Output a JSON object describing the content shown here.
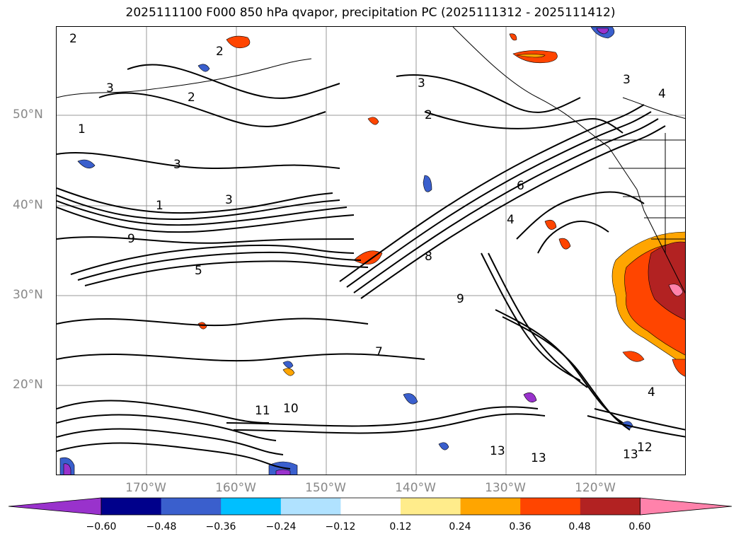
{
  "title": "2025111100 F000 850 hPa qvapor, precipitation PC (2025111312 - 2025111412)",
  "lat_labels": [
    "50°N",
    "40°N",
    "30°N",
    "20°N"
  ],
  "lon_labels": [
    "170°W",
    "160°W",
    "150°W",
    "140°W",
    "130°W",
    "120°W"
  ],
  "contour_labels": [
    "2",
    "3",
    "1",
    "9",
    "5",
    "6",
    "8",
    "10",
    "11",
    "12",
    "13",
    "4",
    "7"
  ],
  "colorbar": {
    "extend": "both",
    "colors": [
      "#9932cc",
      "#00008b",
      "#3a5fcd",
      "#00bfff",
      "#b0e2ff",
      "#ffffff",
      "#ffec8b",
      "#ffa500",
      "#ff4500",
      "#b22222",
      "#ff82ab"
    ],
    "tick_labels": [
      "−0.60",
      "−0.48",
      "−0.36",
      "−0.24",
      "−0.12",
      "0.12",
      "0.24",
      "0.36",
      "0.48",
      "0.60"
    ],
    "levels": [
      -0.6,
      -0.48,
      -0.36,
      -0.24,
      -0.12,
      0.12,
      0.24,
      0.36,
      0.48,
      0.6
    ]
  }
}
